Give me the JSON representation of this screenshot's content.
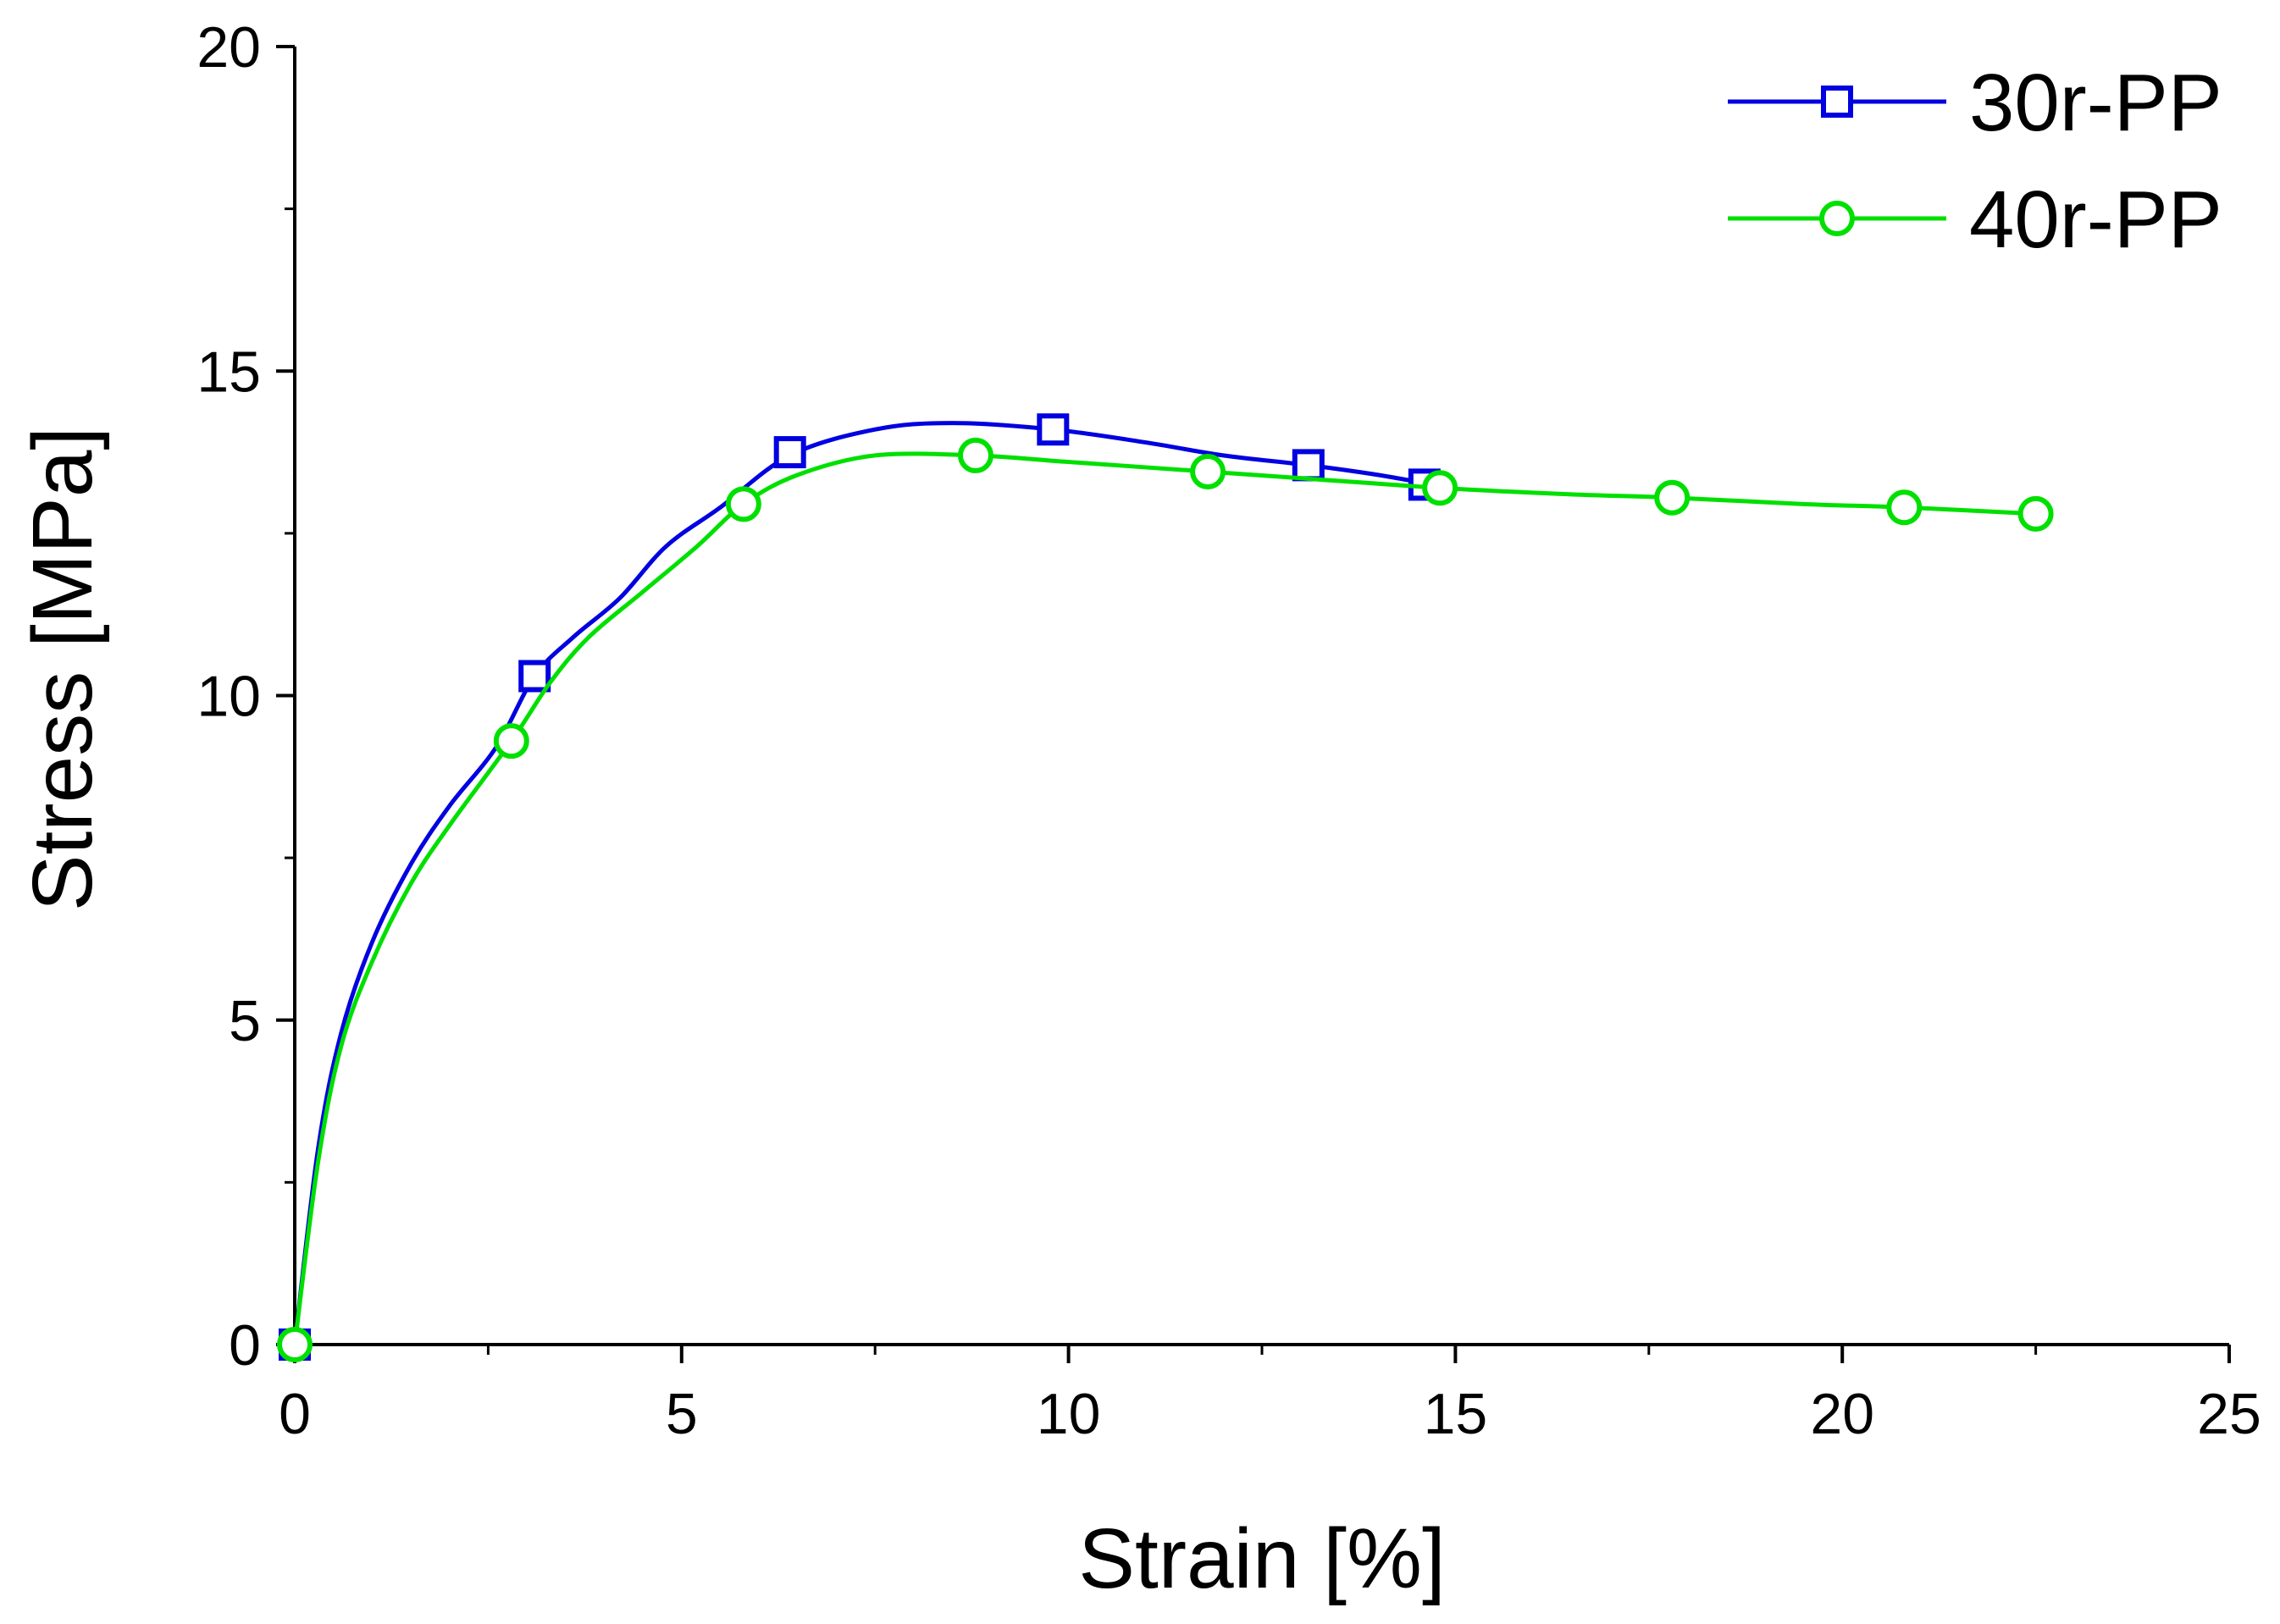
{
  "chart_data": {
    "type": "line",
    "title": "",
    "xlabel": "Strain [%]",
    "ylabel": "Stress [MPa]",
    "xlim": [
      0,
      25
    ],
    "ylim": [
      0,
      20
    ],
    "xticks": [
      0,
      5,
      10,
      15,
      20,
      25
    ],
    "yticks": [
      0,
      5,
      10,
      15,
      20
    ],
    "xtick_labels": [
      "0",
      "5",
      "10",
      "15",
      "20",
      "25"
    ],
    "ytick_labels": [
      "0",
      "5",
      "10",
      "15",
      "20"
    ],
    "grid": false,
    "legend_position": "top-right",
    "series": [
      {
        "name": "30r-PP",
        "color": "#0000e0",
        "marker": "square",
        "curve_x": [
          0,
          0.3,
          0.6,
          1.0,
          1.5,
          2.0,
          2.6,
          3.1,
          3.6,
          4.2,
          4.8,
          5.5,
          6.4,
          7.5,
          8.5,
          9.8,
          11.0,
          12.0,
          13.1,
          14.0,
          14.7
        ],
        "curve_y": [
          0,
          3.0,
          4.8,
          6.2,
          7.4,
          8.3,
          9.2,
          10.3,
          10.9,
          11.5,
          12.3,
          12.9,
          13.7,
          14.1,
          14.2,
          14.1,
          13.9,
          13.7,
          13.55,
          13.4,
          13.25
        ],
        "marker_x": [
          0,
          3.1,
          6.4,
          9.8,
          13.1,
          14.6
        ],
        "marker_y": [
          0,
          10.3,
          13.75,
          14.1,
          13.55,
          13.25
        ]
      },
      {
        "name": "40r-PP",
        "color": "#00e000",
        "marker": "circle",
        "curve_x": [
          0,
          0.3,
          0.6,
          1.0,
          1.5,
          2.0,
          2.8,
          3.3,
          3.8,
          4.5,
          5.2,
          5.8,
          6.5,
          7.5,
          8.8,
          10.0,
          11.8,
          13.0,
          14.8,
          16.5,
          17.8,
          19.5,
          20.8,
          22.5
        ],
        "curve_y": [
          0,
          2.8,
          4.6,
          5.9,
          7.1,
          8.0,
          9.3,
          10.2,
          10.9,
          11.6,
          12.3,
          12.95,
          13.4,
          13.7,
          13.7,
          13.6,
          13.45,
          13.35,
          13.2,
          13.1,
          13.05,
          12.95,
          12.9,
          12.8
        ],
        "marker_x": [
          0,
          2.8,
          5.8,
          8.8,
          11.8,
          14.8,
          17.8,
          20.8,
          22.5
        ],
        "marker_y": [
          0,
          9.3,
          12.95,
          13.7,
          13.45,
          13.2,
          13.05,
          12.9,
          12.8
        ]
      }
    ]
  }
}
